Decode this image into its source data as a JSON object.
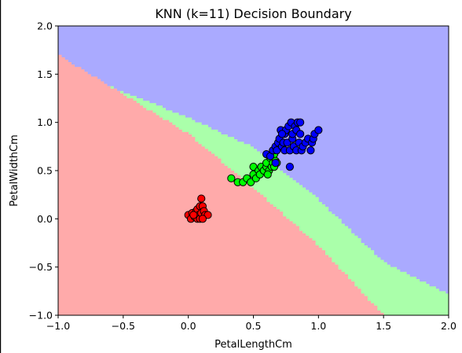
{
  "chart_data": {
    "type": "scatter",
    "title": "KNN (k=11) Decision Boundary",
    "xlabel": "PetalLengthCm",
    "ylabel": "PetalWidthCm",
    "xlim": [
      -1.0,
      2.0
    ],
    "ylim": [
      -1.0,
      2.0
    ],
    "xticks": [
      -1.0,
      -0.5,
      0.0,
      0.5,
      1.0,
      1.5,
      2.0
    ],
    "yticks": [
      -1.0,
      -0.5,
      0.0,
      0.5,
      1.0,
      1.5,
      2.0
    ],
    "xtick_labels": [
      "−1.0",
      "−0.5",
      "0.0",
      "0.5",
      "1.0",
      "1.5",
      "2.0"
    ],
    "ytick_labels": [
      "−1.0",
      "−0.5",
      "0.0",
      "0.5",
      "1.0",
      "1.5",
      "2.0"
    ],
    "grid": false,
    "regions": [
      {
        "class": 0,
        "color": "#ffaaaa"
      },
      {
        "class": 1,
        "color": "#aaffaa"
      },
      {
        "class": 2,
        "color": "#aaaaff"
      }
    ],
    "boundaries": {
      "red_green": [
        [
          -1.0,
          1.7
        ],
        [
          0.0,
          0.88
        ],
        [
          0.5,
          0.32
        ],
        [
          1.0,
          -0.28
        ],
        [
          1.5,
          -1.0
        ]
      ],
      "green_blue": [
        [
          -0.62,
          1.38
        ],
        [
          0.0,
          1.05
        ],
        [
          0.5,
          0.74
        ],
        [
          1.0,
          0.2
        ],
        [
          1.5,
          -0.45
        ],
        [
          2.0,
          -0.78
        ]
      ]
    },
    "series": [
      {
        "class": 0,
        "color": "#ff0000",
        "points": [
          [
            0.0,
            0.04
          ],
          [
            0.02,
            0.0
          ],
          [
            0.03,
            0.06
          ],
          [
            0.05,
            0.02
          ],
          [
            0.06,
            0.08
          ],
          [
            0.07,
            0.0
          ],
          [
            0.07,
            0.1
          ],
          [
            0.08,
            0.04
          ],
          [
            0.09,
            0.13
          ],
          [
            0.09,
            0.0
          ],
          [
            0.1,
            0.21
          ],
          [
            0.1,
            0.06
          ],
          [
            0.11,
            0.13
          ],
          [
            0.12,
            0.08
          ],
          [
            0.13,
            0.04
          ],
          [
            0.15,
            0.04
          ],
          [
            0.04,
            0.04
          ],
          [
            0.11,
            0.0
          ]
        ]
      },
      {
        "class": 1,
        "color": "#00ff00",
        "points": [
          [
            0.33,
            0.42
          ],
          [
            0.38,
            0.38
          ],
          [
            0.42,
            0.38
          ],
          [
            0.45,
            0.42
          ],
          [
            0.48,
            0.38
          ],
          [
            0.5,
            0.46
          ],
          [
            0.5,
            0.54
          ],
          [
            0.52,
            0.42
          ],
          [
            0.54,
            0.5
          ],
          [
            0.55,
            0.46
          ],
          [
            0.56,
            0.54
          ],
          [
            0.58,
            0.5
          ],
          [
            0.6,
            0.54
          ],
          [
            0.6,
            0.58
          ],
          [
            0.62,
            0.5
          ],
          [
            0.63,
            0.63
          ],
          [
            0.64,
            0.54
          ],
          [
            0.65,
            0.58
          ],
          [
            0.66,
            0.67
          ],
          [
            0.67,
            0.6
          ],
          [
            0.68,
            0.58
          ],
          [
            0.66,
            0.54
          ],
          [
            0.61,
            0.46
          ]
        ]
      },
      {
        "class": 2,
        "color": "#0000ff",
        "points": [
          [
            0.6,
            0.67
          ],
          [
            0.63,
            0.65
          ],
          [
            0.65,
            0.71
          ],
          [
            0.67,
            0.75
          ],
          [
            0.68,
            0.71
          ],
          [
            0.69,
            0.79
          ],
          [
            0.7,
            0.83
          ],
          [
            0.71,
            0.92
          ],
          [
            0.72,
            0.75
          ],
          [
            0.73,
            0.79
          ],
          [
            0.74,
            0.71
          ],
          [
            0.74,
            0.88
          ],
          [
            0.75,
            0.92
          ],
          [
            0.76,
            0.79
          ],
          [
            0.77,
            0.96
          ],
          [
            0.78,
            0.71
          ],
          [
            0.79,
            1.0
          ],
          [
            0.8,
            0.83
          ],
          [
            0.8,
            0.88
          ],
          [
            0.81,
            0.75
          ],
          [
            0.82,
            0.96
          ],
          [
            0.83,
            0.71
          ],
          [
            0.83,
            0.92
          ],
          [
            0.84,
            1.0
          ],
          [
            0.85,
            0.79
          ],
          [
            0.86,
            1.0
          ],
          [
            0.86,
            0.88
          ],
          [
            0.87,
            0.71
          ],
          [
            0.88,
            0.75
          ],
          [
            0.9,
            0.79
          ],
          [
            0.92,
            0.83
          ],
          [
            0.94,
            0.71
          ],
          [
            0.95,
            0.79
          ],
          [
            0.96,
            0.83
          ],
          [
            0.97,
            0.88
          ],
          [
            1.0,
            0.92
          ],
          [
            0.78,
            0.54
          ],
          [
            0.67,
            0.58
          ],
          [
            0.72,
            0.88
          ]
        ]
      }
    ]
  }
}
